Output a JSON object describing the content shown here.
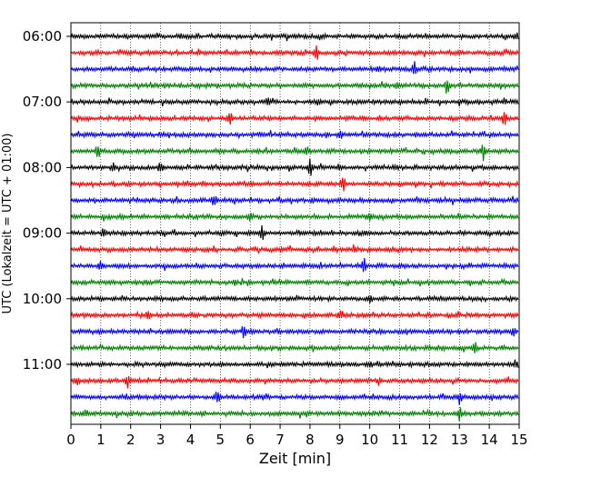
{
  "chart_data": {
    "type": "line",
    "title": "",
    "xlabel": "Zeit  [min]",
    "ylabel": "UTC (Lokalzeit = UTC + 01:00)",
    "xlim": [
      0,
      15
    ],
    "x_ticks": [
      0,
      1,
      2,
      3,
      4,
      5,
      6,
      7,
      8,
      9,
      10,
      11,
      12,
      13,
      14,
      15
    ],
    "x_tick_labels": [
      "0",
      "1",
      "2",
      "3",
      "4",
      "5",
      "6",
      "7",
      "8",
      "9",
      "10",
      "11",
      "12",
      "13",
      "14",
      "15"
    ],
    "y_tick_labels": [
      "06:00",
      "07:00",
      "08:00",
      "09:00",
      "10:00",
      "11:00"
    ],
    "row_interval_min": 15,
    "grid": "vertical dotted",
    "colors": [
      "#000000",
      "#ff0000",
      "#0000ff",
      "#008000"
    ],
    "rows": [
      {
        "start": "06:00",
        "spikes": [
          [
            3.7,
            0.3
          ],
          [
            14.9,
            0.4
          ]
        ]
      },
      {
        "start": "06:15",
        "spikes": [
          [
            8.2,
            1.0
          ]
        ]
      },
      {
        "start": "06:30",
        "spikes": [
          [
            10.3,
            0.3
          ],
          [
            11.5,
            0.7
          ]
        ]
      },
      {
        "start": "06:45",
        "spikes": [
          [
            12.6,
            1.0
          ],
          [
            10.9,
            0.3
          ]
        ]
      },
      {
        "start": "07:00",
        "spikes": [
          [
            6.6,
            0.5
          ],
          [
            8.3,
            0.3
          ],
          [
            14.5,
            0.3
          ]
        ]
      },
      {
        "start": "07:15",
        "spikes": [
          [
            5.3,
            0.9
          ],
          [
            14.5,
            0.9
          ]
        ]
      },
      {
        "start": "07:30",
        "spikes": [
          [
            9.0,
            0.5
          ]
        ]
      },
      {
        "start": "07:45",
        "spikes": [
          [
            0.9,
            0.9
          ],
          [
            7.9,
            0.5
          ],
          [
            13.8,
            1.0
          ]
        ]
      },
      {
        "start": "08:00",
        "spikes": [
          [
            1.4,
            0.6
          ],
          [
            3.0,
            0.6
          ],
          [
            8.0,
            1.0
          ],
          [
            9.0,
            0.4
          ]
        ]
      },
      {
        "start": "08:15",
        "spikes": [
          [
            9.1,
            0.9
          ]
        ]
      },
      {
        "start": "08:30",
        "spikes": [
          [
            4.8,
            0.9
          ]
        ]
      },
      {
        "start": "08:45",
        "spikes": [
          [
            6.0,
            0.5
          ],
          [
            10.0,
            0.3
          ]
        ]
      },
      {
        "start": "09:00",
        "spikes": [
          [
            1.1,
            0.6
          ],
          [
            6.4,
            1.0
          ]
        ]
      },
      {
        "start": "09:15",
        "spikes": [
          [
            9.5,
            0.6
          ],
          [
            8.8,
            0.3
          ]
        ]
      },
      {
        "start": "09:30",
        "spikes": [
          [
            1.0,
            0.5
          ],
          [
            9.8,
            0.9
          ]
        ]
      },
      {
        "start": "09:45",
        "spikes": [
          [
            5.5,
            0.3
          ]
        ]
      },
      {
        "start": "10:00",
        "spikes": [
          [
            10.0,
            0.6
          ]
        ]
      },
      {
        "start": "10:15",
        "spikes": [
          [
            2.6,
            0.6
          ],
          [
            9.0,
            0.4
          ]
        ]
      },
      {
        "start": "10:30",
        "spikes": [
          [
            5.8,
            0.9
          ],
          [
            14.8,
            0.5
          ]
        ]
      },
      {
        "start": "10:45",
        "spikes": [
          [
            13.5,
            0.9
          ]
        ]
      },
      {
        "start": "11:00",
        "spikes": [
          [
            10.0,
            0.4
          ],
          [
            14.9,
            0.5
          ]
        ]
      },
      {
        "start": "11:15",
        "spikes": [
          [
            1.9,
            0.8
          ],
          [
            10.3,
            0.4
          ],
          [
            0.2,
            0.4
          ]
        ]
      },
      {
        "start": "11:30",
        "spikes": [
          [
            4.9,
            0.8
          ],
          [
            13.0,
            0.7
          ]
        ]
      },
      {
        "start": "11:45",
        "spikes": [
          [
            13.0,
            0.8
          ],
          [
            0.5,
            0.3
          ]
        ]
      }
    ]
  }
}
